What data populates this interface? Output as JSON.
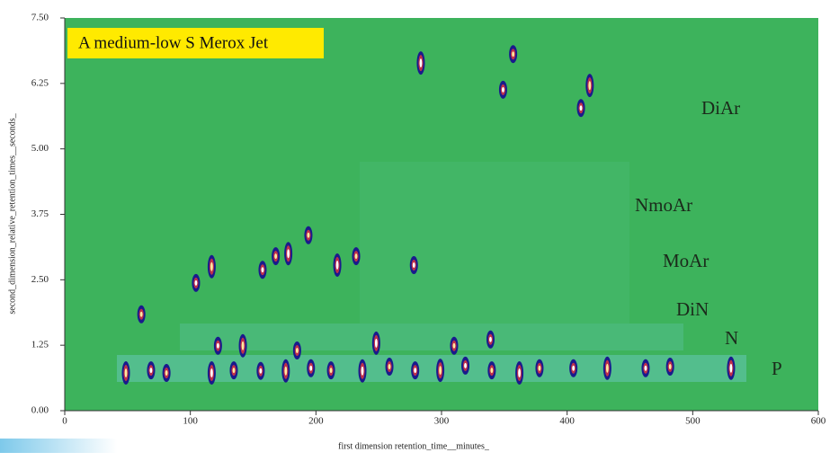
{
  "chart_data": {
    "type": "contour",
    "title": "A medium-low S Merox Jet",
    "x_label": "first dimension   retention_time__minutes_",
    "y_label": "second_dimension_relative_retention_times__seconds_",
    "background_color": "#3db35c",
    "color": "#1a1a8c",
    "xlim": [
      0,
      600
    ],
    "ylim": [
      0,
      7.5
    ],
    "xticks": [
      0,
      100,
      200,
      300,
      400,
      500,
      600
    ],
    "yticks": [
      {
        "value": 0,
        "label": "0.00"
      },
      1.25,
      {
        "value": 2.5,
        "label": "2.50"
      },
      3.75,
      {
        "value": 5,
        "label": "5.00"
      },
      6.25,
      {
        "value": 7.5,
        "label": "7.50"
      }
    ],
    "regions": [
      "DiAr",
      "NmoAr",
      "MoAr",
      "DiN",
      "N",
      "P"
    ],
    "x": [
      283.5,
      357,
      349,
      418,
      411,
      194,
      178,
      168,
      157.5,
      117,
      104.5,
      61,
      217,
      232,
      278,
      141.8,
      122,
      185,
      248,
      310,
      339,
      48.7,
      68.7,
      81,
      117,
      134.6,
      156,
      176,
      196,
      212,
      237,
      258.5,
      279,
      299,
      319,
      340,
      362,
      378,
      405,
      432,
      462.5,
      482,
      530.5
    ],
    "values": [
      6.64,
      6.81,
      6.13,
      6.21,
      5.78,
      3.35,
      3.0,
      2.95,
      2.69,
      2.75,
      2.44,
      1.84,
      2.78,
      2.95,
      2.78,
      1.24,
      1.24,
      1.15,
      1.29,
      1.24,
      1.36,
      0.72,
      0.77,
      0.72,
      0.72,
      0.77,
      0.76,
      0.76,
      0.81,
      0.77,
      0.76,
      0.84,
      0.77,
      0.77,
      0.86,
      0.77,
      0.72,
      0.81,
      0.81,
      0.81,
      0.81,
      0.84,
      0.81
    ]
  }
}
